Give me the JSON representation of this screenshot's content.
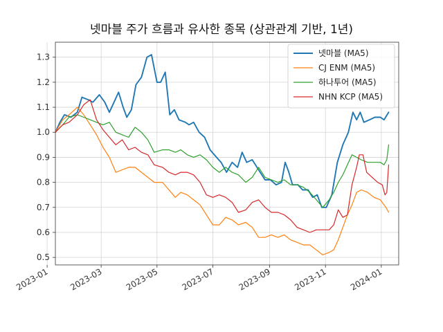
{
  "chart_data": {
    "type": "line",
    "title": "넷마블 주가 흐름과 유사한 종목 (상관관계 기반, 1년)",
    "xlabel": "",
    "ylabel": "",
    "x_range": [
      "2023-01-10",
      "2024-01-20"
    ],
    "ylim": [
      0.47,
      1.36
    ],
    "y_ticks": [
      0.5,
      0.6,
      0.7,
      0.8,
      0.9,
      1.0,
      1.1,
      1.2,
      1.3
    ],
    "y_tick_labels": [
      "0.5",
      "0.6",
      "0.7",
      "0.8",
      "0.9",
      "1.0",
      "1.1",
      "1.2",
      "1.3"
    ],
    "x_ticks": [
      "2023-01-01",
      "2023-03-01",
      "2023-05-01",
      "2023-07-01",
      "2023-09-01",
      "2023-11-01",
      "2024-01-01"
    ],
    "x_tick_labels": [
      "2023-01",
      "2023-03",
      "2023-05",
      "2023-07",
      "2023-09",
      "2023-11",
      "2024-01"
    ],
    "grid": true,
    "legend_position": "top-right",
    "series": [
      {
        "name": "넷마블 (MA5)",
        "color": "#1f77b4",
        "points": [
          [
            "2023-01-10",
            1.0
          ],
          [
            "2023-01-15",
            1.04
          ],
          [
            "2023-01-20",
            1.07
          ],
          [
            "2023-01-27",
            1.06
          ],
          [
            "2023-02-03",
            1.08
          ],
          [
            "2023-02-08",
            1.14
          ],
          [
            "2023-02-15",
            1.13
          ],
          [
            "2023-02-20",
            1.12
          ],
          [
            "2023-02-27",
            1.15
          ],
          [
            "2023-03-05",
            1.12
          ],
          [
            "2023-03-10",
            1.08
          ],
          [
            "2023-03-15",
            1.12
          ],
          [
            "2023-03-20",
            1.16
          ],
          [
            "2023-03-25",
            1.1
          ],
          [
            "2023-03-29",
            1.06
          ],
          [
            "2023-04-03",
            1.09
          ],
          [
            "2023-04-08",
            1.19
          ],
          [
            "2023-04-14",
            1.22
          ],
          [
            "2023-04-20",
            1.3
          ],
          [
            "2023-04-25",
            1.31
          ],
          [
            "2023-05-01",
            1.2
          ],
          [
            "2023-05-05",
            1.2
          ],
          [
            "2023-05-10",
            1.24
          ],
          [
            "2023-05-15",
            1.07
          ],
          [
            "2023-05-20",
            1.09
          ],
          [
            "2023-05-25",
            1.05
          ],
          [
            "2023-06-01",
            1.04
          ],
          [
            "2023-06-05",
            1.03
          ],
          [
            "2023-06-10",
            1.04
          ],
          [
            "2023-06-16",
            1.0
          ],
          [
            "2023-06-22",
            0.98
          ],
          [
            "2023-06-28",
            0.93
          ],
          [
            "2023-07-05",
            0.9
          ],
          [
            "2023-07-10",
            0.88
          ],
          [
            "2023-07-16",
            0.84
          ],
          [
            "2023-07-22",
            0.88
          ],
          [
            "2023-07-28",
            0.86
          ],
          [
            "2023-08-02",
            0.92
          ],
          [
            "2023-08-07",
            0.88
          ],
          [
            "2023-08-13",
            0.89
          ],
          [
            "2023-08-20",
            0.85
          ],
          [
            "2023-08-27",
            0.81
          ],
          [
            "2023-09-02",
            0.81
          ],
          [
            "2023-09-08",
            0.79
          ],
          [
            "2023-09-14",
            0.8
          ],
          [
            "2023-09-18",
            0.88
          ],
          [
            "2023-09-22",
            0.84
          ],
          [
            "2023-09-26",
            0.79
          ],
          [
            "2023-10-02",
            0.79
          ],
          [
            "2023-10-07",
            0.77
          ],
          [
            "2023-10-13",
            0.77
          ],
          [
            "2023-10-18",
            0.74
          ],
          [
            "2023-10-23",
            0.75
          ],
          [
            "2023-10-28",
            0.7
          ],
          [
            "2023-11-02",
            0.7
          ],
          [
            "2023-11-08",
            0.75
          ],
          [
            "2023-11-14",
            0.88
          ],
          [
            "2023-11-20",
            0.95
          ],
          [
            "2023-11-26",
            1.0
          ],
          [
            "2023-12-01",
            1.08
          ],
          [
            "2023-12-05",
            1.05
          ],
          [
            "2023-12-09",
            1.08
          ],
          [
            "2023-12-13",
            1.04
          ],
          [
            "2023-12-19",
            1.05
          ],
          [
            "2023-12-25",
            1.06
          ],
          [
            "2023-12-31",
            1.06
          ],
          [
            "2024-01-04",
            1.05
          ],
          [
            "2024-01-09",
            1.08
          ]
        ]
      },
      {
        "name": "CJ ENM (MA5)",
        "color": "#ff7f0e",
        "points": [
          [
            "2023-01-10",
            1.0
          ],
          [
            "2023-01-18",
            1.05
          ],
          [
            "2023-01-25",
            1.07
          ],
          [
            "2023-02-03",
            1.1
          ],
          [
            "2023-02-10",
            1.07
          ],
          [
            "2023-02-17",
            1.03
          ],
          [
            "2023-02-24",
            0.99
          ],
          [
            "2023-03-03",
            0.94
          ],
          [
            "2023-03-10",
            0.9
          ],
          [
            "2023-03-17",
            0.84
          ],
          [
            "2023-03-24",
            0.85
          ],
          [
            "2023-03-31",
            0.86
          ],
          [
            "2023-04-07",
            0.86
          ],
          [
            "2023-04-14",
            0.84
          ],
          [
            "2023-04-21",
            0.82
          ],
          [
            "2023-04-28",
            0.8
          ],
          [
            "2023-05-07",
            0.8
          ],
          [
            "2023-05-14",
            0.77
          ],
          [
            "2023-05-21",
            0.74
          ],
          [
            "2023-05-27",
            0.76
          ],
          [
            "2023-06-03",
            0.75
          ],
          [
            "2023-06-10",
            0.73
          ],
          [
            "2023-06-17",
            0.71
          ],
          [
            "2023-06-24",
            0.67
          ],
          [
            "2023-07-01",
            0.63
          ],
          [
            "2023-07-08",
            0.63
          ],
          [
            "2023-07-15",
            0.66
          ],
          [
            "2023-07-22",
            0.65
          ],
          [
            "2023-07-29",
            0.63
          ],
          [
            "2023-08-06",
            0.64
          ],
          [
            "2023-08-13",
            0.62
          ],
          [
            "2023-08-20",
            0.58
          ],
          [
            "2023-08-27",
            0.58
          ],
          [
            "2023-09-03",
            0.59
          ],
          [
            "2023-09-10",
            0.58
          ],
          [
            "2023-09-17",
            0.59
          ],
          [
            "2023-09-24",
            0.57
          ],
          [
            "2023-10-01",
            0.56
          ],
          [
            "2023-10-08",
            0.55
          ],
          [
            "2023-10-15",
            0.55
          ],
          [
            "2023-10-22",
            0.53
          ],
          [
            "2023-10-29",
            0.51
          ],
          [
            "2023-11-05",
            0.52
          ],
          [
            "2023-11-10",
            0.53
          ],
          [
            "2023-11-15",
            0.57
          ],
          [
            "2023-11-20",
            0.62
          ],
          [
            "2023-11-25",
            0.67
          ],
          [
            "2023-11-30",
            0.71
          ],
          [
            "2023-12-05",
            0.76
          ],
          [
            "2023-12-10",
            0.77
          ],
          [
            "2023-12-17",
            0.76
          ],
          [
            "2023-12-24",
            0.74
          ],
          [
            "2023-12-31",
            0.73
          ],
          [
            "2024-01-06",
            0.7
          ],
          [
            "2024-01-09",
            0.68
          ]
        ]
      },
      {
        "name": "하나투어 (MA5)",
        "color": "#2ca02c",
        "points": [
          [
            "2023-01-10",
            1.0
          ],
          [
            "2023-01-18",
            1.03
          ],
          [
            "2023-01-25",
            1.06
          ],
          [
            "2023-02-03",
            1.07
          ],
          [
            "2023-02-10",
            1.06
          ],
          [
            "2023-02-17",
            1.05
          ],
          [
            "2023-02-24",
            1.04
          ],
          [
            "2023-03-03",
            1.03
          ],
          [
            "2023-03-10",
            1.04
          ],
          [
            "2023-03-17",
            1.0
          ],
          [
            "2023-03-24",
            0.99
          ],
          [
            "2023-03-31",
            0.98
          ],
          [
            "2023-04-07",
            1.02
          ],
          [
            "2023-04-14",
            1.0
          ],
          [
            "2023-04-21",
            0.97
          ],
          [
            "2023-04-28",
            0.92
          ],
          [
            "2023-05-07",
            0.93
          ],
          [
            "2023-05-14",
            0.93
          ],
          [
            "2023-05-21",
            0.92
          ],
          [
            "2023-05-27",
            0.93
          ],
          [
            "2023-06-03",
            0.91
          ],
          [
            "2023-06-10",
            0.9
          ],
          [
            "2023-06-17",
            0.91
          ],
          [
            "2023-06-24",
            0.89
          ],
          [
            "2023-07-01",
            0.86
          ],
          [
            "2023-07-08",
            0.84
          ],
          [
            "2023-07-15",
            0.86
          ],
          [
            "2023-07-22",
            0.84
          ],
          [
            "2023-07-29",
            0.83
          ],
          [
            "2023-08-06",
            0.8
          ],
          [
            "2023-08-13",
            0.82
          ],
          [
            "2023-08-20",
            0.86
          ],
          [
            "2023-08-27",
            0.82
          ],
          [
            "2023-09-03",
            0.81
          ],
          [
            "2023-09-10",
            0.8
          ],
          [
            "2023-09-17",
            0.81
          ],
          [
            "2023-09-24",
            0.79
          ],
          [
            "2023-10-01",
            0.79
          ],
          [
            "2023-10-08",
            0.78
          ],
          [
            "2023-10-15",
            0.76
          ],
          [
            "2023-10-22",
            0.73
          ],
          [
            "2023-10-29",
            0.7
          ],
          [
            "2023-11-05",
            0.73
          ],
          [
            "2023-11-10",
            0.76
          ],
          [
            "2023-11-15",
            0.8
          ],
          [
            "2023-11-20",
            0.83
          ],
          [
            "2023-11-25",
            0.87
          ],
          [
            "2023-11-30",
            0.91
          ],
          [
            "2023-12-05",
            0.9
          ],
          [
            "2023-12-10",
            0.89
          ],
          [
            "2023-12-17",
            0.88
          ],
          [
            "2023-12-24",
            0.88
          ],
          [
            "2023-12-31",
            0.88
          ],
          [
            "2024-01-04",
            0.87
          ],
          [
            "2024-01-07",
            0.89
          ],
          [
            "2024-01-09",
            0.95
          ]
        ]
      },
      {
        "name": "NHN KCP (MA5)",
        "color": "#d62728",
        "points": [
          [
            "2023-01-10",
            1.0
          ],
          [
            "2023-01-18",
            1.03
          ],
          [
            "2023-01-25",
            1.04
          ],
          [
            "2023-02-03",
            1.07
          ],
          [
            "2023-02-10",
            1.11
          ],
          [
            "2023-02-17",
            1.13
          ],
          [
            "2023-02-24",
            1.05
          ],
          [
            "2023-03-03",
            1.01
          ],
          [
            "2023-03-10",
            0.98
          ],
          [
            "2023-03-17",
            0.95
          ],
          [
            "2023-03-24",
            0.97
          ],
          [
            "2023-03-31",
            0.93
          ],
          [
            "2023-04-07",
            0.94
          ],
          [
            "2023-04-14",
            0.92
          ],
          [
            "2023-04-21",
            0.91
          ],
          [
            "2023-04-28",
            0.87
          ],
          [
            "2023-05-07",
            0.86
          ],
          [
            "2023-05-14",
            0.84
          ],
          [
            "2023-05-21",
            0.83
          ],
          [
            "2023-05-27",
            0.84
          ],
          [
            "2023-06-03",
            0.84
          ],
          [
            "2023-06-10",
            0.83
          ],
          [
            "2023-06-17",
            0.8
          ],
          [
            "2023-06-24",
            0.75
          ],
          [
            "2023-07-01",
            0.74
          ],
          [
            "2023-07-08",
            0.75
          ],
          [
            "2023-07-15",
            0.74
          ],
          [
            "2023-07-22",
            0.72
          ],
          [
            "2023-07-29",
            0.68
          ],
          [
            "2023-08-06",
            0.69
          ],
          [
            "2023-08-13",
            0.72
          ],
          [
            "2023-08-20",
            0.73
          ],
          [
            "2023-08-27",
            0.7
          ],
          [
            "2023-09-03",
            0.68
          ],
          [
            "2023-09-10",
            0.68
          ],
          [
            "2023-09-17",
            0.67
          ],
          [
            "2023-09-24",
            0.65
          ],
          [
            "2023-10-01",
            0.62
          ],
          [
            "2023-10-08",
            0.61
          ],
          [
            "2023-10-15",
            0.6
          ],
          [
            "2023-10-22",
            0.61
          ],
          [
            "2023-10-29",
            0.61
          ],
          [
            "2023-11-05",
            0.61
          ],
          [
            "2023-11-10",
            0.63
          ],
          [
            "2023-11-15",
            0.69
          ],
          [
            "2023-11-20",
            0.66
          ],
          [
            "2023-11-25",
            0.67
          ],
          [
            "2023-11-30",
            0.79
          ],
          [
            "2023-12-05",
            0.86
          ],
          [
            "2023-12-08",
            0.91
          ],
          [
            "2023-12-12",
            0.91
          ],
          [
            "2023-12-16",
            0.84
          ],
          [
            "2023-12-22",
            0.82
          ],
          [
            "2023-12-28",
            0.8
          ],
          [
            "2024-01-02",
            0.79
          ],
          [
            "2024-01-05",
            0.75
          ],
          [
            "2024-01-07",
            0.76
          ],
          [
            "2024-01-09",
            0.87
          ]
        ]
      }
    ]
  }
}
